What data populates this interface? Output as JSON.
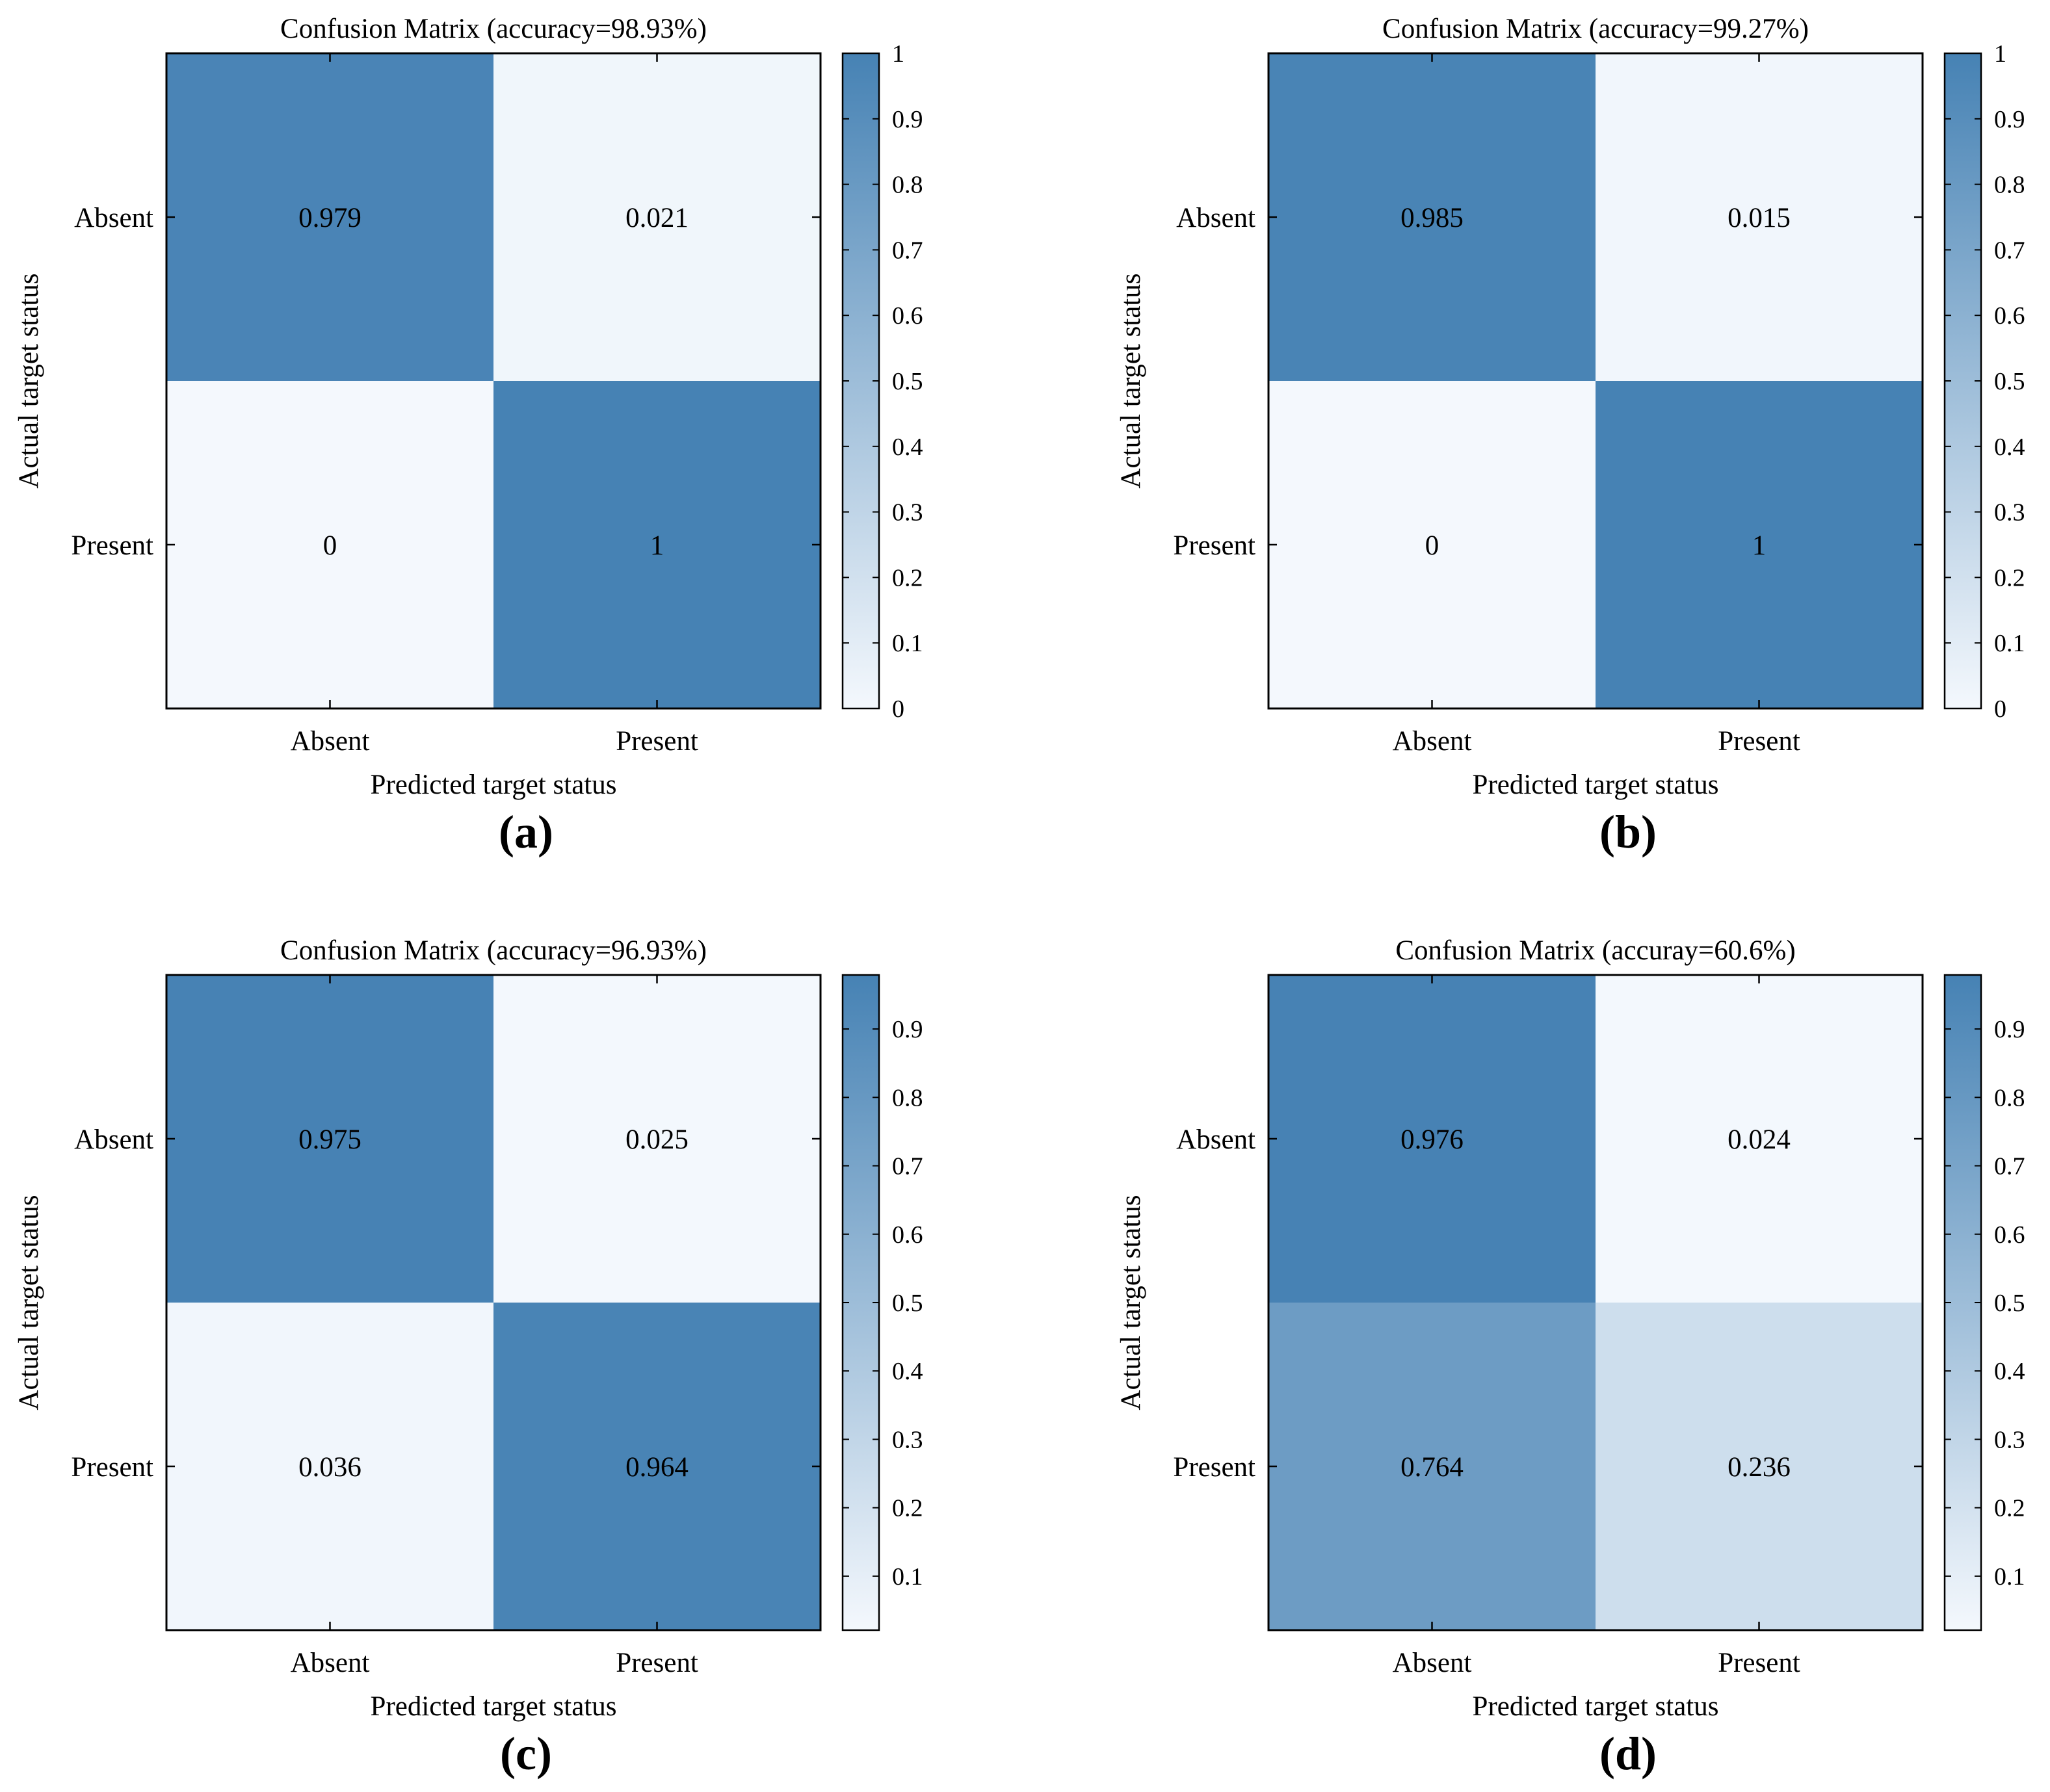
{
  "figure": {
    "colors": {
      "low": "#F4F8FD",
      "high": "#4682B4",
      "axis": "#000000"
    }
  },
  "chart_data": [
    {
      "type": "heatmap",
      "panel_label": "(a)",
      "title": "Confusion Matrix (accuracy=98.93%)",
      "xlabel": "Predicted target status",
      "ylabel": "Actual target status",
      "x_categories": [
        "Absent",
        "Present"
      ],
      "y_categories": [
        "Absent",
        "Present"
      ],
      "values": [
        [
          0.979,
          0.021
        ],
        [
          0,
          1
        ]
      ],
      "cell_labels": [
        [
          "0.979",
          "0.021"
        ],
        [
          "0",
          "1"
        ]
      ],
      "colorbar": {
        "min": 0,
        "max": 1,
        "ticks": [
          0,
          0.1,
          0.2,
          0.3,
          0.4,
          0.5,
          0.6,
          0.7,
          0.8,
          0.9,
          1
        ],
        "tick_labels": [
          "0",
          "0.1",
          "0.2",
          "0.3",
          "0.4",
          "0.5",
          "0.6",
          "0.7",
          "0.8",
          "0.9",
          "1"
        ]
      }
    },
    {
      "type": "heatmap",
      "panel_label": "(b)",
      "title": "Confusion Matrix (accuracy=99.27%)",
      "xlabel": "Predicted target status",
      "ylabel": "Actual target status",
      "x_categories": [
        "Absent",
        "Present"
      ],
      "y_categories": [
        "Absent",
        "Present"
      ],
      "values": [
        [
          0.985,
          0.015
        ],
        [
          0,
          1
        ]
      ],
      "cell_labels": [
        [
          "0.985",
          "0.015"
        ],
        [
          "0",
          "1"
        ]
      ],
      "colorbar": {
        "min": 0,
        "max": 1,
        "ticks": [
          0,
          0.1,
          0.2,
          0.3,
          0.4,
          0.5,
          0.6,
          0.7,
          0.8,
          0.9,
          1
        ],
        "tick_labels": [
          "0",
          "0.1",
          "0.2",
          "0.3",
          "0.4",
          "0.5",
          "0.6",
          "0.7",
          "0.8",
          "0.9",
          "1"
        ]
      }
    },
    {
      "type": "heatmap",
      "panel_label": "(c)",
      "title": "Confusion Matrix (accuracy=96.93%)",
      "xlabel": "Predicted target status",
      "ylabel": "Actual target status",
      "x_categories": [
        "Absent",
        "Present"
      ],
      "y_categories": [
        "Absent",
        "Present"
      ],
      "values": [
        [
          0.975,
          0.025
        ],
        [
          0.036,
          0.964
        ]
      ],
      "cell_labels": [
        [
          "0.975",
          "0.025"
        ],
        [
          "0.036",
          "0.964"
        ]
      ],
      "colorbar": {
        "min": 0.021,
        "max": 0.979,
        "ticks": [
          0.1,
          0.2,
          0.3,
          0.4,
          0.5,
          0.6,
          0.7,
          0.8,
          0.9
        ],
        "tick_labels": [
          "0.1",
          "0.2",
          "0.3",
          "0.4",
          "0.5",
          "0.6",
          "0.7",
          "0.8",
          "0.9"
        ]
      }
    },
    {
      "type": "heatmap",
      "panel_label": "(d)",
      "title": "Confusion Matrix (accuray=60.6%)",
      "xlabel": "Predicted target status",
      "ylabel": "Actual target status",
      "x_categories": [
        "Absent",
        "Present"
      ],
      "y_categories": [
        "Absent",
        "Present"
      ],
      "values": [
        [
          0.976,
          0.024
        ],
        [
          0.764,
          0.236
        ]
      ],
      "cell_labels": [
        [
          "0.976",
          "0.024"
        ],
        [
          "0.764",
          "0.236"
        ]
      ],
      "colorbar": {
        "min": 0.021,
        "max": 0.979,
        "ticks": [
          0.1,
          0.2,
          0.3,
          0.4,
          0.5,
          0.6,
          0.7,
          0.8,
          0.9
        ],
        "tick_labels": [
          "0.1",
          "0.2",
          "0.3",
          "0.4",
          "0.5",
          "0.6",
          "0.7",
          "0.8",
          "0.9"
        ]
      }
    }
  ]
}
